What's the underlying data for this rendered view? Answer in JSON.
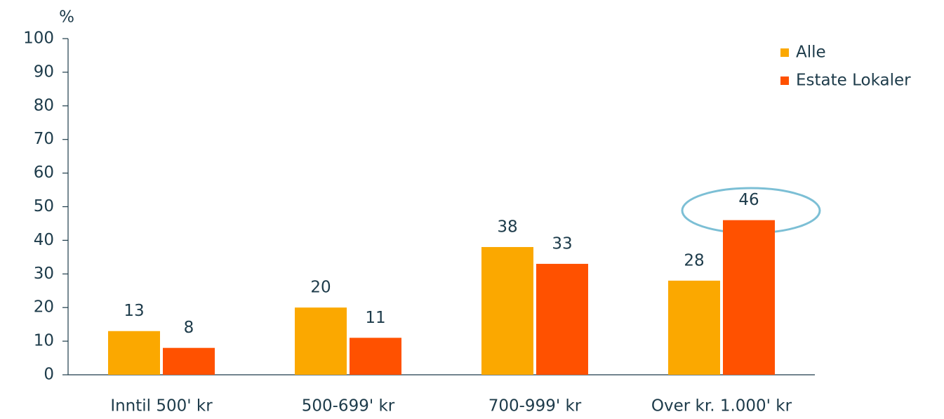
{
  "chart_data": {
    "type": "bar",
    "y_label": "%",
    "categories": [
      "Inntil 500' kr",
      "500-699' kr",
      "700-999' kr",
      "Over kr. 1.000' kr"
    ],
    "series": [
      {
        "name": "Alle",
        "color": "#fba800",
        "values": [
          13,
          20,
          38,
          28
        ]
      },
      {
        "name": "Estate Lokaler",
        "color": "#ff5100",
        "values": [
          8,
          11,
          33,
          46
        ]
      }
    ],
    "ylim": [
      0,
      100
    ],
    "yticks": [
      0,
      10,
      20,
      30,
      40,
      50,
      60,
      70,
      80,
      90,
      100
    ],
    "legend": "upper right"
  }
}
